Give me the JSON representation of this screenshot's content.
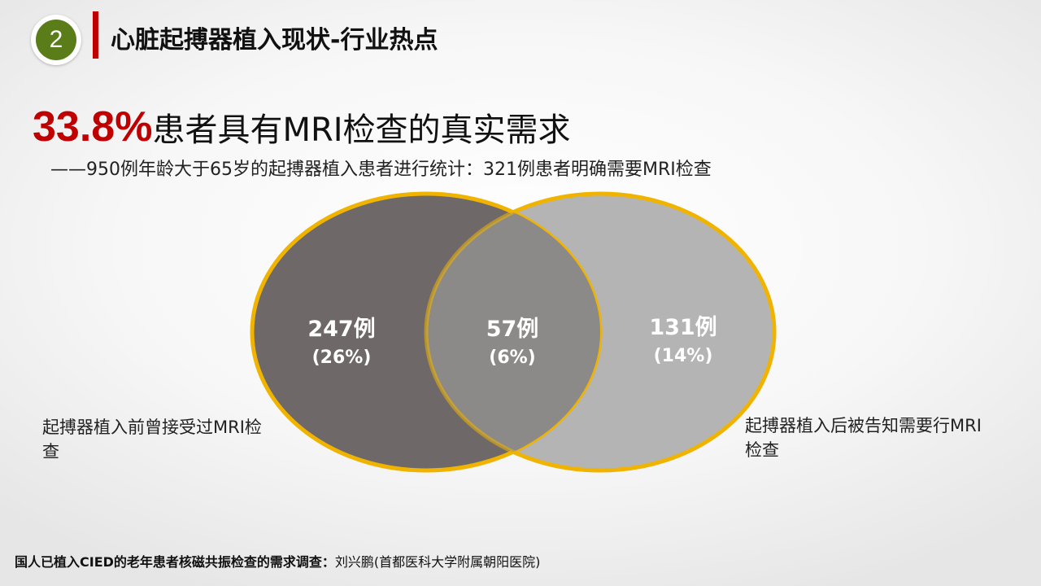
{
  "header": {
    "section_number": "2",
    "title": "心脏起搏器植入现状-行业热点"
  },
  "headline": {
    "percent": "33.8%",
    "text": "患者具有MRI检查的真实需求"
  },
  "subline": "——950例年龄大于65岁的起搏器植入患者进行统计：321例患者明确需要MRI检查",
  "venn": {
    "left": {
      "count": "247例",
      "pct": "(26%)",
      "fill": "#6e6868"
    },
    "overlap": {
      "count": "57例",
      "pct": "(6%)",
      "fill": "#8c8a88"
    },
    "right": {
      "count": "131例",
      "pct": "(14%)",
      "fill": "#b4b4b4"
    },
    "border_color": "#f0b400"
  },
  "labels": {
    "left": "起搏器植入前曾接受过MRI检查",
    "right": "起搏器植入后被告知需要行MRI检查"
  },
  "footer": {
    "strong": "国人已植入CIED的老年患者核磁共振检查的需求调查：",
    "normal": "刘兴鹏(首都医科大学附属朝阳医院)"
  }
}
